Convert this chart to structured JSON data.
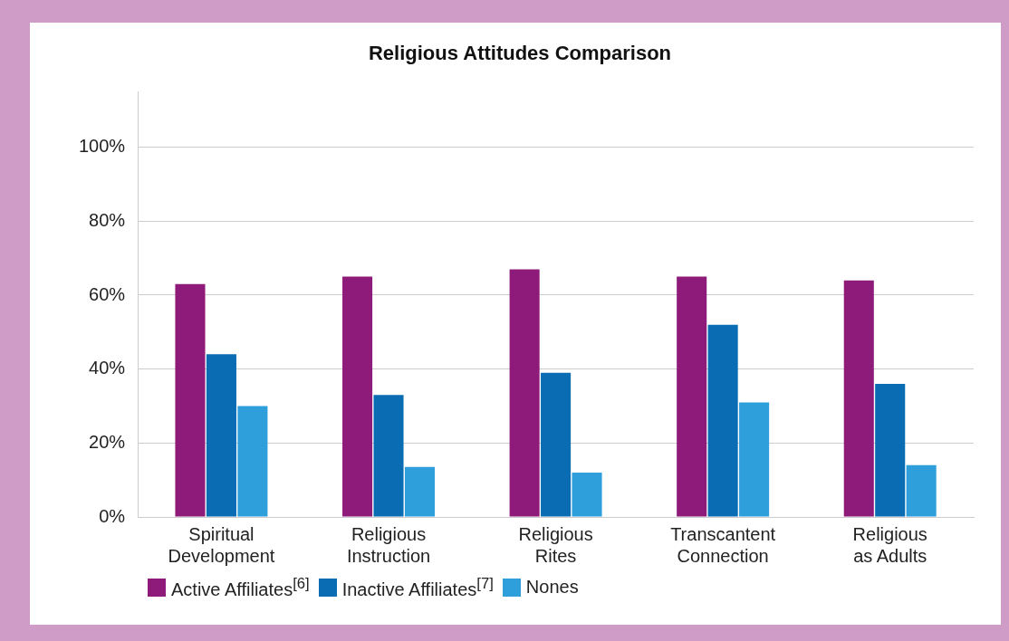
{
  "chart_data": {
    "type": "bar",
    "title": "Religious Attitudes Comparison",
    "categories": [
      "Spiritual Development",
      "Religious Instruction",
      "Religious Rites",
      "Transcantent Connection",
      "Religious as Adults"
    ],
    "series": [
      {
        "name": "Active Affiliates$^{[6]}$",
        "color": "#8e1b7a",
        "values": [
          63,
          65,
          67,
          65,
          64
        ]
      },
      {
        "name": "Inactive Affiliates$^{[7]}$",
        "color": "#0a6db4",
        "values": [
          44,
          33,
          39,
          52,
          36
        ]
      },
      {
        "name": "Nones",
        "color": "#2f9fdc",
        "values": [
          30,
          13.5,
          12,
          31,
          14
        ]
      }
    ],
    "ylim": [
      0,
      115
    ],
    "yticks": [
      {
        "value": 0,
        "label": "0%"
      },
      {
        "value": 20,
        "label": "20%"
      },
      {
        "value": 40,
        "label": "40%"
      },
      {
        "value": 60,
        "label": "60%"
      },
      {
        "value": 80,
        "label": "80%"
      },
      {
        "value": 100,
        "label": "100%"
      }
    ],
    "grid": "y",
    "legend": "bottom left"
  }
}
